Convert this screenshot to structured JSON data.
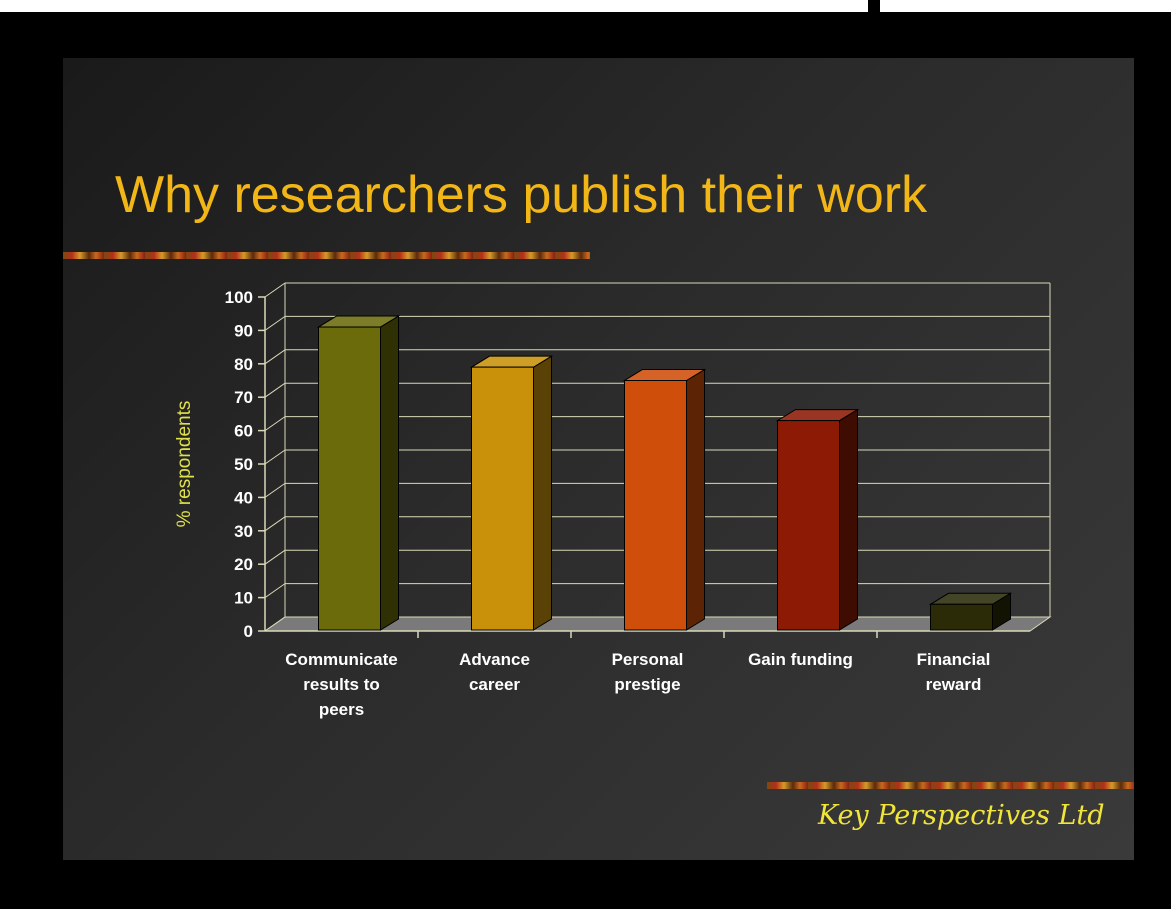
{
  "slide": {
    "title": "Why researchers publish their work",
    "footer": "Key Perspectives Ltd"
  },
  "colors": {
    "title": "#f2b716",
    "footer": "#f1e53a",
    "axis_title": "#dfe04a",
    "grid": "#d9d9b8"
  },
  "chart_data": {
    "type": "bar",
    "title": "",
    "xlabel": "",
    "ylabel": "% respondents",
    "ylim": [
      0,
      100
    ],
    "yticks": [
      0,
      10,
      20,
      30,
      40,
      50,
      60,
      70,
      80,
      90,
      100
    ],
    "grid": true,
    "style": "3d",
    "categories": [
      [
        "Communicate",
        "results to",
        "peers"
      ],
      [
        "Advance",
        "career"
      ],
      [
        "Personal",
        "prestige"
      ],
      [
        "Gain funding"
      ],
      [
        "Financial",
        "reward"
      ]
    ],
    "values": [
      91,
      79,
      75,
      63,
      8
    ],
    "bar_colors": [
      "#6b6b0c",
      "#c9910a",
      "#cf4e0a",
      "#8c1a05",
      "#2b2b08"
    ]
  }
}
